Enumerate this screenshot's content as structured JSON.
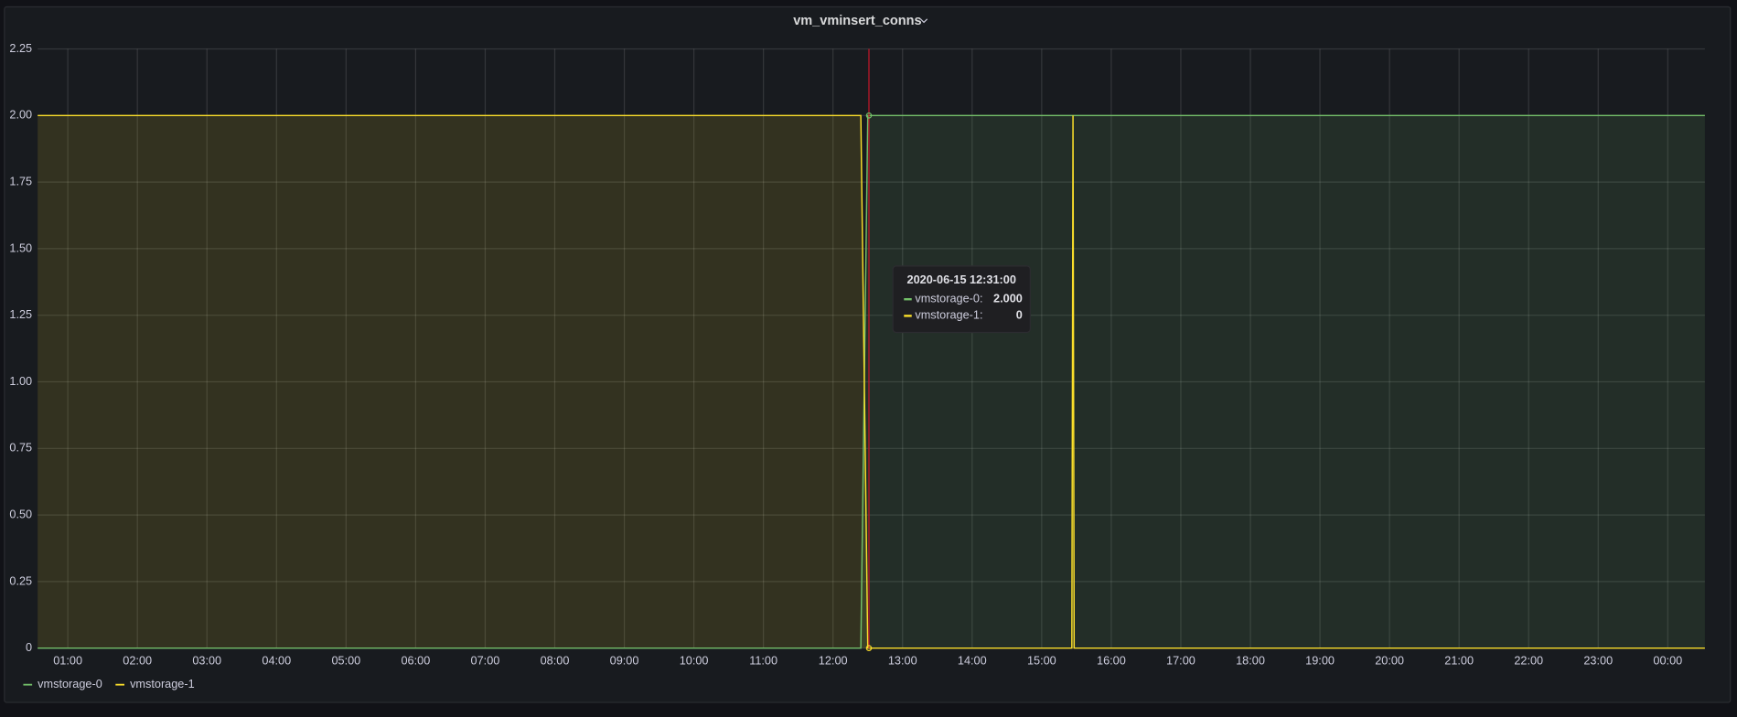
{
  "chart_data": {
    "type": "line",
    "title": "vm_vminsert_conns",
    "x": [
      34,
      744,
      750,
      926,
      927,
      928,
      1472
    ],
    "series": [
      {
        "name": "vmstorage-0",
        "color": "#73bf69",
        "values": [
          0,
          0,
          2,
          2,
          2,
          2,
          2
        ]
      },
      {
        "name": "vmstorage-1",
        "color": "#fade2a",
        "values": [
          2,
          2,
          0,
          0,
          2,
          0,
          0
        ]
      }
    ],
    "xlim": [
      34,
      1472
    ],
    "xticks": [
      {
        "value": 60,
        "label": "01:00"
      },
      {
        "value": 120,
        "label": "02:00"
      },
      {
        "value": 180,
        "label": "03:00"
      },
      {
        "value": 240,
        "label": "04:00"
      },
      {
        "value": 300,
        "label": "05:00"
      },
      {
        "value": 360,
        "label": "06:00"
      },
      {
        "value": 420,
        "label": "07:00"
      },
      {
        "value": 480,
        "label": "08:00"
      },
      {
        "value": 540,
        "label": "09:00"
      },
      {
        "value": 600,
        "label": "10:00"
      },
      {
        "value": 660,
        "label": "11:00"
      },
      {
        "value": 720,
        "label": "12:00"
      },
      {
        "value": 780,
        "label": "13:00"
      },
      {
        "value": 840,
        "label": "14:00"
      },
      {
        "value": 900,
        "label": "15:00"
      },
      {
        "value": 960,
        "label": "16:00"
      },
      {
        "value": 1020,
        "label": "17:00"
      },
      {
        "value": 1080,
        "label": "18:00"
      },
      {
        "value": 1140,
        "label": "19:00"
      },
      {
        "value": 1200,
        "label": "20:00"
      },
      {
        "value": 1260,
        "label": "21:00"
      },
      {
        "value": 1320,
        "label": "22:00"
      },
      {
        "value": 1380,
        "label": "23:00"
      },
      {
        "value": 1440,
        "label": "00:00"
      }
    ],
    "ylim": [
      0,
      2.25
    ],
    "yticks": [
      0,
      0.25,
      {
        "value": 0.5,
        "label": "0.50"
      },
      0.75,
      {
        "value": 1,
        "label": "1.00"
      },
      1.25,
      {
        "value": 1.5,
        "label": "1.50"
      },
      1.75,
      {
        "value": 2,
        "label": "2.00"
      },
      2.25
    ],
    "grid": true,
    "legend": "bottom-left",
    "tooltip": {
      "title": "2020-06-15 12:31:00",
      "x": 751,
      "labels": [
        "vmstorage-0:",
        "vmstorage-1:"
      ],
      "values": [
        2,
        0
      ],
      "value_labels": [
        "2.000",
        "0"
      ]
    }
  }
}
